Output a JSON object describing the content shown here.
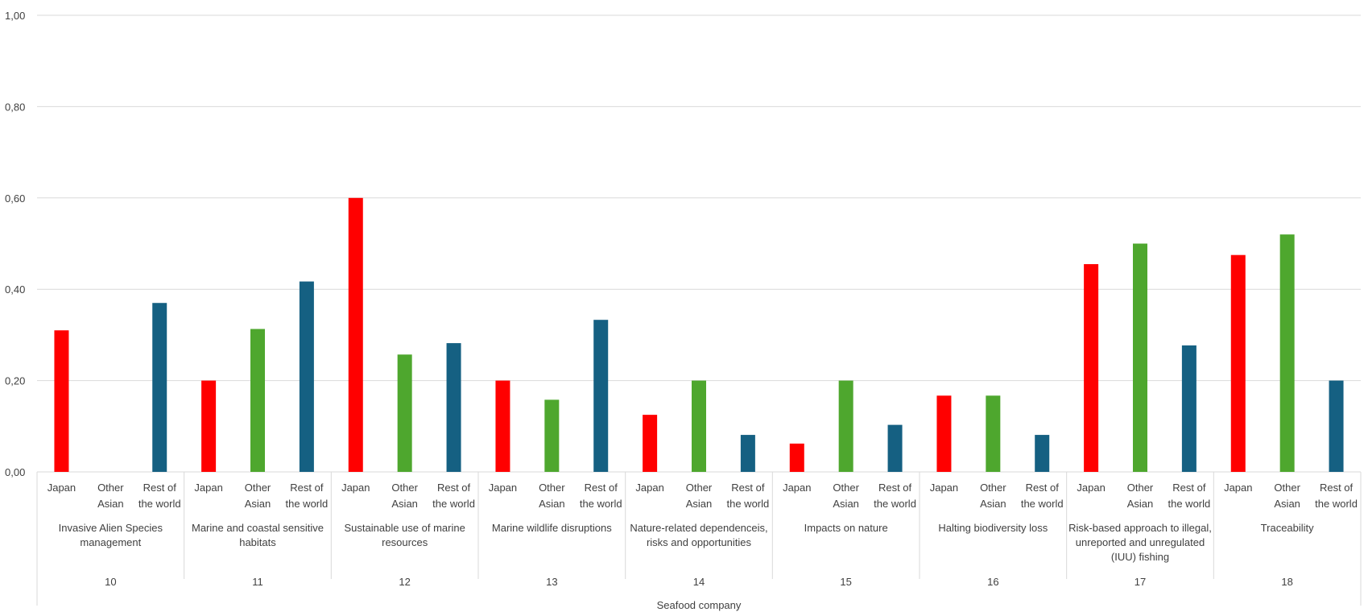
{
  "chart_data": {
    "type": "bar",
    "ylim": [
      0,
      1
    ],
    "yticks": [
      "0,00",
      "0,20",
      "0,40",
      "0,60",
      "0,80",
      "1,00"
    ],
    "grid": true,
    "legend": "none",
    "series_colors": [
      "#ff0000",
      "#4ea72e",
      "#156082"
    ],
    "subcategories": [
      [
        "Japan"
      ],
      [
        "Other",
        "Asian"
      ],
      [
        "Rest of",
        "the world"
      ]
    ],
    "groups": [
      {
        "name": [
          "Invasive Alien Species",
          "management"
        ],
        "number": "10",
        "values": [
          0.31,
          0,
          0.37
        ]
      },
      {
        "name": [
          "Marine and coastal sensitive",
          "habitats"
        ],
        "number": "11",
        "values": [
          0.2,
          0.313,
          0.417
        ]
      },
      {
        "name": [
          "Sustainable use of marine",
          "resources"
        ],
        "number": "12",
        "values": [
          0.6,
          0.257,
          0.282
        ]
      },
      {
        "name": [
          "Marine wildlife disruptions"
        ],
        "number": "13",
        "values": [
          0.2,
          0.158,
          0.333
        ]
      },
      {
        "name": [
          "Nature-related dependenceis,",
          "risks and opportunities"
        ],
        "number": "14",
        "values": [
          0.125,
          0.2,
          0.081
        ]
      },
      {
        "name": [
          "Impacts on nature"
        ],
        "number": "15",
        "values": [
          0.062,
          0.2,
          0.103
        ]
      },
      {
        "name": [
          "Halting biodiversity loss"
        ],
        "number": "16",
        "values": [
          0.167,
          0.167,
          0.081
        ]
      },
      {
        "name": [
          "Risk-based approach to illegal,",
          "unreported and unregulated",
          "(IUU) fishing"
        ],
        "number": "17",
        "values": [
          0.455,
          0.5,
          0.277
        ]
      },
      {
        "name": [
          "Traceability"
        ],
        "number": "18",
        "values": [
          0.475,
          0.52,
          0.2
        ]
      }
    ],
    "xlabel": "Seafood company",
    "ylabel": ""
  }
}
